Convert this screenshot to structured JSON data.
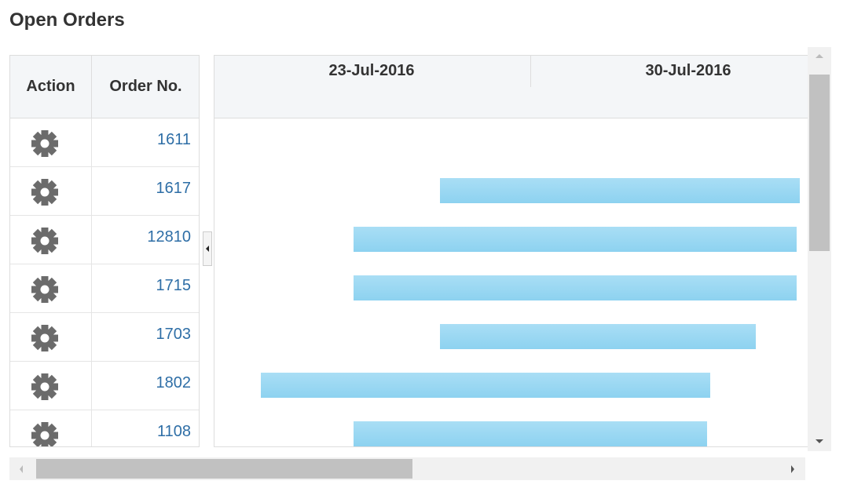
{
  "header": {
    "title": "Open Orders"
  },
  "table": {
    "columns": [
      "Action",
      "Order No."
    ],
    "rows": [
      "1611",
      "1617",
      "12810",
      "1715",
      "1703",
      "1802",
      "1108"
    ]
  },
  "gantt": {
    "dates": [
      "23-Jul-2016",
      "30-Jul-2016"
    ]
  }
}
